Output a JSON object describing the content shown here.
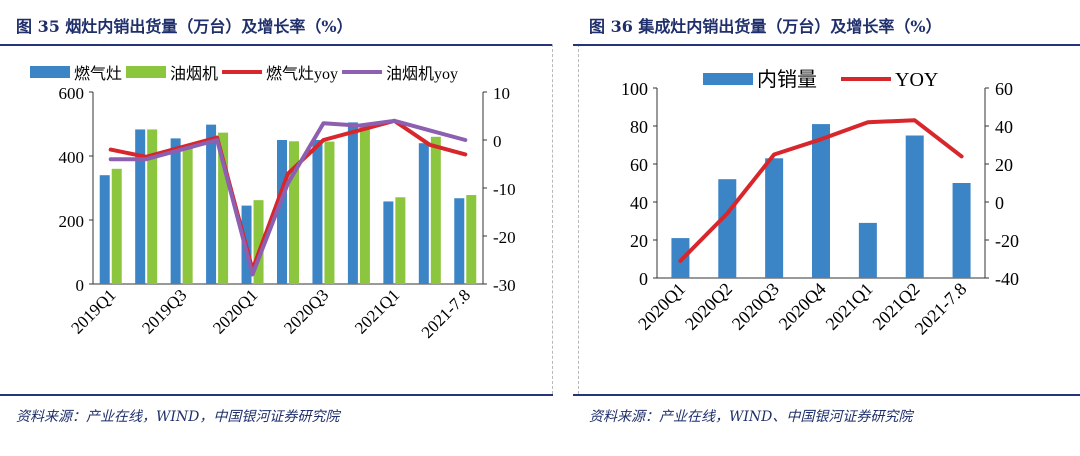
{
  "left": {
    "title": "图 35 烟灶内销出货量（万台）及增长率（%）",
    "source": "资料来源：产业在线，WIND，中国银河证券研究院",
    "colors": {
      "gas": "#3b84c6",
      "hood": "#8cc63f",
      "gas_yoy": "#d7262c",
      "hood_yoy": "#8c5fb0"
    }
  },
  "right": {
    "title": "图 36 集成灶内销出货量（万台）及增长率（%）",
    "source": "资料来源：产业在线，WIND、中国银河证券研究院",
    "colors": {
      "volume": "#3b84c6",
      "yoy": "#d7262c"
    }
  },
  "chart_data": [
    {
      "type": "bar",
      "combo": "bar+line",
      "categories": [
        "2019Q1",
        "2019Q2",
        "2019Q3",
        "2019Q4",
        "2020Q1",
        "2020Q2",
        "2020Q3",
        "2020Q4",
        "2021Q1",
        "2021Q2",
        "2021-7.8"
      ],
      "x_tick_labels": [
        "2019Q1",
        "2019Q3",
        "2020Q1",
        "2020Q3",
        "2021Q1",
        "2021-7.8"
      ],
      "series": [
        {
          "name": "燃气灶",
          "kind": "bar",
          "axis": "left",
          "values": [
            340,
            483,
            455,
            498,
            245,
            450,
            450,
            505,
            258,
            440,
            268
          ]
        },
        {
          "name": "油烟机",
          "kind": "bar",
          "axis": "left",
          "values": [
            360,
            483,
            430,
            473,
            262,
            446,
            445,
            500,
            271,
            460,
            278
          ]
        },
        {
          "name": "燃气灶yoy",
          "kind": "line",
          "axis": "right",
          "values": [
            -2,
            -3.5,
            -1.5,
            0.5,
            -27,
            -7,
            0,
            2,
            4,
            -1,
            -3
          ]
        },
        {
          "name": "油烟机yoy",
          "kind": "line",
          "axis": "right",
          "values": [
            -4,
            -4,
            -2,
            0,
            -28,
            -9,
            3.5,
            3,
            4,
            2,
            0
          ]
        }
      ],
      "y_left": {
        "ylim": [
          0,
          600
        ],
        "ticks": [
          0,
          200,
          400,
          600
        ]
      },
      "y_right": {
        "ylim": [
          -30,
          10
        ],
        "ticks": [
          10,
          0,
          -10,
          -20,
          -30
        ]
      },
      "legend": "top"
    },
    {
      "type": "bar",
      "combo": "bar+line",
      "categories": [
        "2020Q1",
        "2020Q2",
        "2020Q3",
        "2020Q4",
        "2021Q1",
        "2021Q2",
        "2021-7.8"
      ],
      "x_tick_labels": [
        "2020Q1",
        "2020Q2",
        "2020Q3",
        "2020Q4",
        "2021Q1",
        "2021Q2",
        "2021-7.8"
      ],
      "series": [
        {
          "name": "内销量",
          "kind": "bar",
          "axis": "left",
          "values": [
            21,
            52,
            63,
            81,
            29,
            75,
            50
          ]
        },
        {
          "name": "YOY",
          "kind": "line",
          "axis": "right",
          "values": [
            -31,
            -6,
            25,
            33,
            42,
            43,
            24
          ]
        }
      ],
      "y_left": {
        "ylim": [
          0,
          100
        ],
        "ticks": [
          0,
          20,
          40,
          60,
          80,
          100
        ]
      },
      "y_right": {
        "ylim": [
          -40,
          60
        ],
        "ticks": [
          60,
          40,
          20,
          0,
          -20,
          -40
        ]
      },
      "legend": "top"
    }
  ]
}
